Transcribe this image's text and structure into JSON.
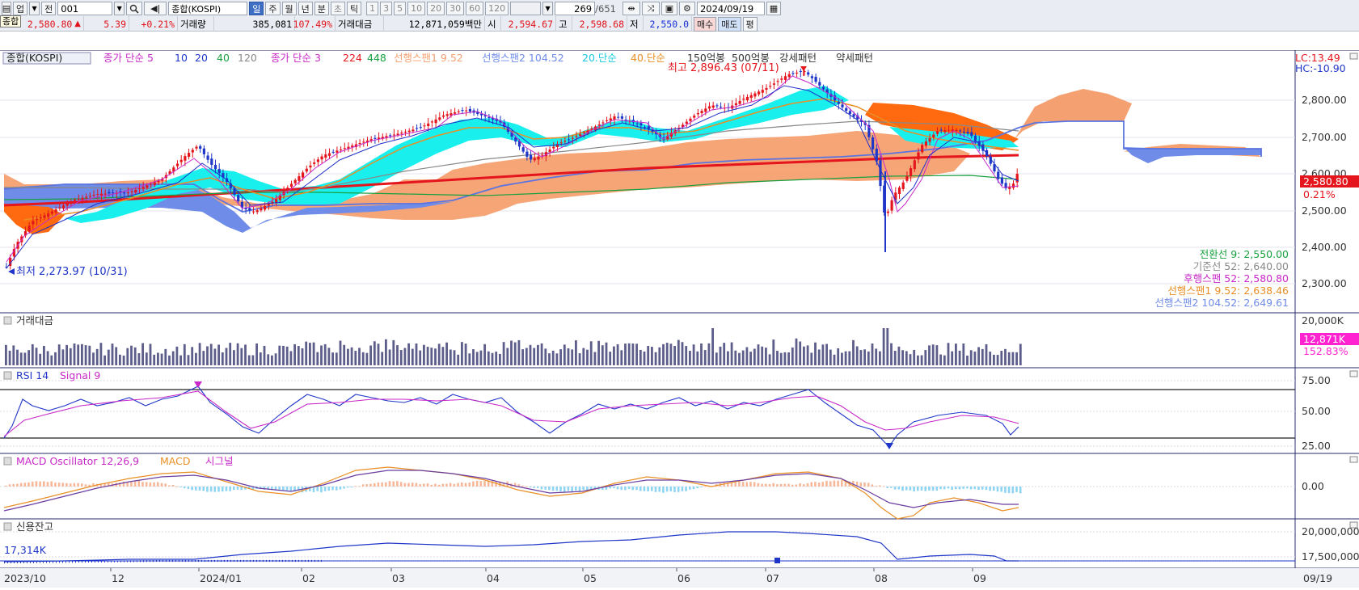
{
  "toolbar": {
    "category_label": "업",
    "period_label": "전",
    "code_value": "001",
    "name_value": "종합(KOSPI)",
    "tooltip_label": "종합",
    "period_buttons": [
      "일",
      "주",
      "월",
      "년",
      "분",
      "초",
      "틱"
    ],
    "active_period": "일",
    "interval_buttons": [
      "1",
      "3",
      "5",
      "10",
      "20",
      "30",
      "60",
      "120"
    ],
    "count_value": "269",
    "total_count": "/651",
    "date_value": "2024/09/19"
  },
  "quote": {
    "price": "2,580.80",
    "change": "5.39",
    "change_pct": "+0.21%",
    "volume_label": "거래량",
    "volume": "385,081",
    "volume_pct": "107.49%",
    "amount_label": "거래대금",
    "amount": "12,871,059백만",
    "open_label": "시",
    "open": "2,594.67",
    "high_label": "고",
    "high": "2,598.68",
    "low_label": "저",
    "low": "2,550.0",
    "buy_label": "매수",
    "sell_label": "매도",
    "eval_label": "평"
  },
  "main_panel": {
    "legend": [
      "종합(KOSPI)",
      "종가 단순 5",
      "10",
      "20",
      "40",
      "120",
      "종가 단순 3",
      "224",
      "448",
      "선행스팬1 9.52",
      "선행스팬2 104.52",
      "20.단순",
      "40.단순",
      "150억봉",
      "500억봉",
      "강세패턴",
      "약세패턴"
    ],
    "lc_hc": [
      "LC:13.49",
      "HC:-10.90"
    ],
    "max_label": "최고 2,896.43 (07/11)",
    "min_label": "최저 2,273.97 (10/31)",
    "y_ticks": [
      "2,800.00",
      "2,700.00",
      "2,600.00",
      "2,500.00",
      "2,400.00",
      "2,300.00"
    ],
    "price_tag": "2,580.80",
    "pct_tag": "0.21%",
    "indicator_values": [
      "전환선 9: 2,550.00",
      "기준선 52: 2,640.00",
      "후행스팬 52: 2,580.80",
      "선행스팬1 9.52: 2,638.46",
      "선행스팬2 104.52: 2,649.61"
    ],
    "colors": {
      "up": "#e4151c",
      "down": "#1f36c8",
      "cloud_cyan": "#19f0ee",
      "cloud_orange": "#f5a070",
      "cloud_dark_orange": "#ff6a10",
      "cloud_blue": "#6f8ce8"
    }
  },
  "amount_panel": {
    "title": "거래대금",
    "y_tick": "20,000K",
    "value_tag": "12,871K",
    "pct_tag": "152.83%"
  },
  "rsi_panel": {
    "title": "RSI 14",
    "signal": "Signal 9",
    "y_ticks": [
      "75.00",
      "50.00",
      "25.00"
    ]
  },
  "macd_panel": {
    "title": "MACD Oscillator 12,26,9",
    "macd": "MACD",
    "signal": "시그널",
    "y_ticks": [
      "0.00"
    ]
  },
  "credit_panel": {
    "title": "신용잔고",
    "value_label": "17,314K",
    "y_ticks": [
      "20,000,000",
      "17,500,000"
    ]
  },
  "x_axis": {
    "labels": [
      "2023/10",
      "12",
      "2024/01",
      "02",
      "03",
      "04",
      "05",
      "06",
      "07",
      "08",
      "09"
    ],
    "right_label": "09/19"
  }
}
